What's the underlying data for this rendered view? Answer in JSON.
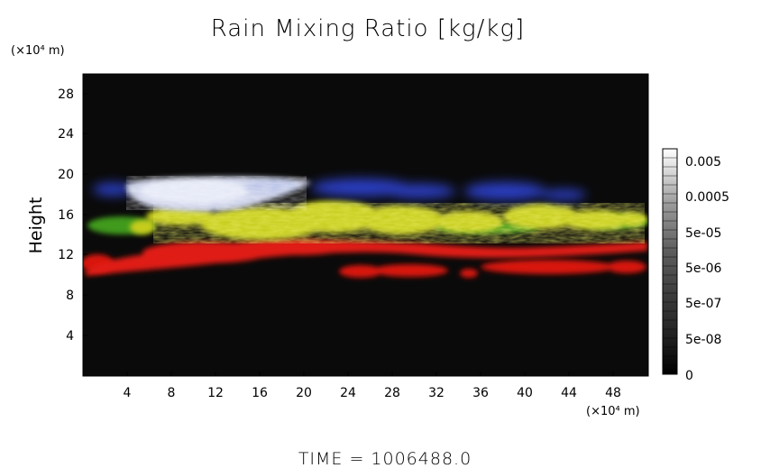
{
  "title": "Rain Mixing Ratio [kg/kg]",
  "y_unit_top": "(×10⁴ m)",
  "x_unit_bottom": "(×10⁴ m)",
  "ylabel": "Height",
  "time_label": "TIME  =  1006488.0",
  "x_ticks": [
    "4",
    "8",
    "12",
    "16",
    "20",
    "24",
    "28",
    "32",
    "36",
    "40",
    "44",
    "48"
  ],
  "y_ticks": [
    "4",
    "8",
    "12",
    "16",
    "20",
    "24",
    "28"
  ],
  "colorbar_labels": [
    "0",
    "5e-08",
    "5e-07",
    "5e-06",
    "5e-05",
    "0.0005",
    "0.005"
  ],
  "colors": {
    "plot_background": "#0a0a0a",
    "red_layer": "#e21a14",
    "yellow_layer": "#c9cf1c",
    "green_edge": "#4aa81c",
    "blue_layer": "#2b3fbf",
    "white_core": "#dfe3f2"
  }
}
